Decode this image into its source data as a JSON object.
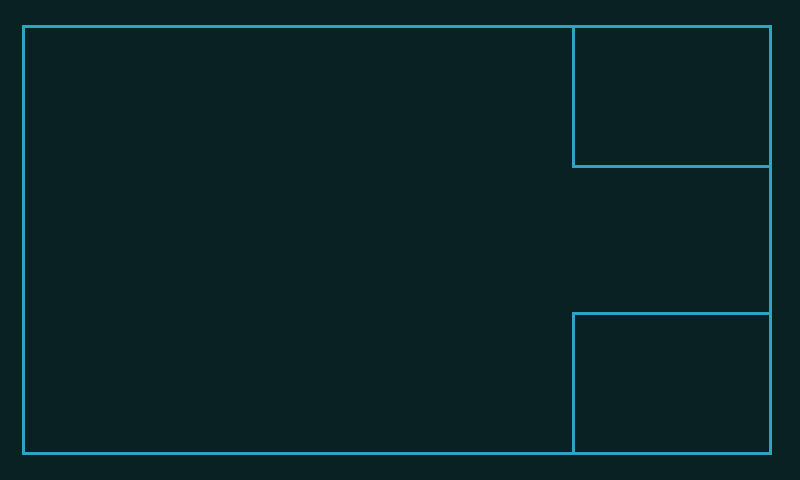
{
  "colors": {
    "background": "#0a2124",
    "outline": "#2fa3c4"
  },
  "panels": [
    {
      "id": "main-panel",
      "label": ""
    },
    {
      "id": "top-right-panel",
      "label": ""
    },
    {
      "id": "bottom-right-panel",
      "label": ""
    }
  ]
}
